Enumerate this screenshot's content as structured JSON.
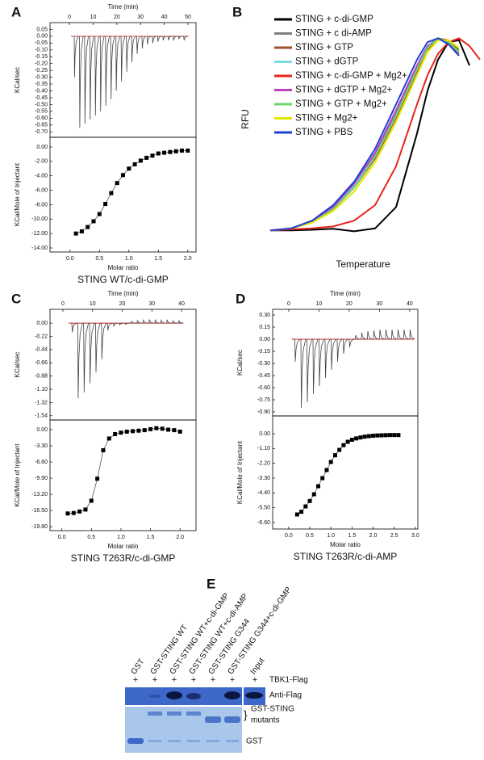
{
  "chart_data": [
    {
      "type": "itc_raw",
      "panel": "A",
      "xlabel": "Time (min)",
      "ylabel": "KCal/sec",
      "color": "#444444",
      "baseline_color": "#d62728",
      "xlim": [
        -8.2,
        53.4
      ],
      "xticks": [
        0,
        10,
        20,
        30,
        40,
        50
      ],
      "ylim": [
        -0.74,
        0.1
      ],
      "yticks": [
        0.05,
        {
          "value": 0,
          "label": "0.00"
        },
        -0.05,
        {
          "value": -0.1,
          "label": "-0.10"
        },
        -0.15,
        {
          "value": -0.2,
          "label": "-0.20"
        },
        -0.25,
        {
          "value": -0.3,
          "label": "-0.30"
        },
        -0.35,
        {
          "value": -0.4,
          "label": "-0.40"
        },
        -0.45,
        {
          "value": -0.5,
          "label": "-0.50"
        },
        -0.55,
        {
          "value": -0.6,
          "label": "-0.60"
        },
        -0.65,
        {
          "value": -0.7,
          "label": "-0.70"
        }
      ],
      "x": [
        2,
        4.2,
        6.4,
        8.6,
        10.8,
        13,
        15.2,
        17.4,
        19.6,
        21.8,
        24,
        26.2,
        28.4,
        30.6,
        32.8,
        35,
        37.2,
        39.4,
        41.6,
        43.8,
        46,
        48.2
      ],
      "values": [
        -0.3,
        -0.67,
        -0.64,
        -0.61,
        -0.58,
        -0.55,
        -0.51,
        -0.46,
        -0.4,
        -0.33,
        -0.26,
        -0.19,
        -0.13,
        -0.09,
        -0.06,
        -0.05,
        -0.04,
        -0.03,
        -0.03,
        -0.03,
        -0.02,
        -0.03
      ]
    },
    {
      "type": "itc_binding",
      "xlabel": "Molar ratio",
      "ylabel": "KCal/Mole of Injectant",
      "caption": "STING WT/c-di-GMP",
      "color": "#000000",
      "xlim": [
        -0.34,
        2.14
      ],
      "xticks": [
        {
          "value": 0,
          "label": "0.0"
        },
        0.5,
        {
          "value": 1,
          "label": "1.0"
        },
        1.5,
        {
          "value": 2,
          "label": "2.0"
        }
      ],
      "ylim": [
        -14.56,
        1.34
      ],
      "yticks": [
        {
          "value": 0,
          "label": "0.00"
        },
        {
          "value": -2,
          "label": "-2.00"
        },
        {
          "value": -4,
          "label": "-4.00"
        },
        {
          "value": -6,
          "label": "-6.00"
        },
        {
          "value": -8,
          "label": "-8.00"
        },
        {
          "value": -10,
          "label": "-10.00"
        },
        {
          "value": -12,
          "label": "-12.00"
        },
        {
          "value": -14,
          "label": "-14.00"
        }
      ],
      "x": [
        0.1,
        0.2,
        0.3,
        0.4,
        0.5,
        0.6,
        0.7,
        0.8,
        0.9,
        1.0,
        1.1,
        1.2,
        1.3,
        1.4,
        1.5,
        1.6,
        1.7,
        1.8,
        1.9,
        2.0
      ],
      "values": [
        -12.0,
        -11.7,
        -11.1,
        -10.3,
        -9.3,
        -7.9,
        -6.4,
        -5.0,
        -3.9,
        -3.0,
        -2.4,
        -1.9,
        -1.5,
        -1.2,
        -0.9,
        -0.8,
        -0.7,
        -0.6,
        -0.5,
        -0.5
      ]
    },
    {
      "type": "line",
      "panel": "B",
      "xlabel": "Temperature",
      "ylabel": "RFU",
      "xlim": [
        0,
        100
      ],
      "ylim": [
        -2,
        100
      ],
      "x": [
        0,
        10,
        20,
        30,
        40,
        50,
        60,
        70,
        75,
        80,
        85,
        90,
        95,
        100
      ],
      "series": [
        {
          "name": "STING + c-di-GMP",
          "color": "#000000",
          "values": [
            0,
            0,
            0.3,
            0.8,
            -0.5,
            1,
            12,
            50,
            72,
            88,
            97,
            98,
            85,
            null
          ]
        },
        {
          "name": "STING + c di-AMP",
          "color": "#808080",
          "values": [
            0,
            1,
            5,
            12,
            23,
            39,
            60,
            84,
            94,
            99,
            97,
            91,
            null,
            null
          ]
        },
        {
          "name": "STING + GTP",
          "color": "#a0522d",
          "values": [
            0,
            1,
            4,
            11,
            22,
            37,
            58,
            82,
            93,
            99,
            98,
            93,
            null,
            null
          ]
        },
        {
          "name": "STING + dGTP",
          "color": "#7fdbe0",
          "values": [
            0,
            1,
            5,
            12,
            23,
            38,
            59,
            83,
            94,
            99,
            97,
            92,
            null,
            null
          ]
        },
        {
          "name": "STING + c-di-GMP + Mg2+",
          "color": "#e8251c",
          "values": [
            0,
            0.5,
            1,
            2,
            5,
            13,
            33,
            65,
            80,
            91,
            97,
            99,
            95,
            88
          ]
        },
        {
          "name": "STING + dGTP + Mg2+",
          "color": "#c040c0",
          "values": [
            0,
            1,
            5,
            12,
            24,
            40,
            62,
            85,
            95,
            99,
            96,
            90,
            null,
            null
          ]
        },
        {
          "name": "STING + GTP + Mg2+",
          "color": "#6cd66c",
          "values": [
            0,
            1,
            4,
            11,
            22,
            38,
            59,
            83,
            94,
            99,
            97,
            92,
            null,
            null
          ]
        },
        {
          "name": "STING + Mg2+",
          "color": "#e6e600",
          "values": [
            0,
            1,
            4,
            10,
            20,
            35,
            56,
            80,
            92,
            98,
            98,
            94,
            null,
            null
          ]
        },
        {
          "name": "STING + PBS",
          "color": "#1f3fd6",
          "values": [
            0,
            1,
            5,
            13,
            25,
            42,
            65,
            88,
            97,
            99,
            96,
            90,
            null,
            null
          ]
        }
      ]
    },
    {
      "type": "itc_raw",
      "panel": "C",
      "xlabel": "Time (min)",
      "ylabel": "KCal/sec",
      "color": "#444444",
      "baseline_color": "#d62728",
      "xlim": [
        -4.35,
        44.9
      ],
      "xticks": [
        0,
        10,
        20,
        30,
        40
      ],
      "ylim": [
        -1.61,
        0.23
      ],
      "yticks": [
        {
          "value": 0,
          "label": "0.00"
        },
        -0.22,
        -0.44,
        -0.66,
        -0.88,
        {
          "value": -1.1,
          "label": "-1.10"
        },
        -1.32,
        -1.54
      ],
      "x": [
        3,
        5,
        7,
        9,
        11,
        13,
        15,
        17,
        19,
        21,
        23,
        25,
        27,
        29,
        31,
        33,
        35,
        37,
        39
      ],
      "values": [
        -0.15,
        -1.25,
        -1.15,
        -1.0,
        -0.82,
        -0.6,
        -0.12,
        -0.05,
        -0.03,
        -0.02,
        0.03,
        0.04,
        0.05,
        0.06,
        0.06,
        0.05,
        0.05,
        0.04,
        0.04
      ]
    },
    {
      "type": "itc_binding",
      "xlabel": "Molar ratio",
      "ylabel": "KCal/Mole of Injectant",
      "caption": "STING T263R/c-di-GMP",
      "color": "#000000",
      "xlim": [
        -0.2,
        2.27
      ],
      "xticks": [
        {
          "value": 0,
          "label": "0.0"
        },
        0.5,
        {
          "value": 1,
          "label": "1.0"
        },
        1.5,
        {
          "value": 2,
          "label": "2.0"
        }
      ],
      "ylim": [
        -20.6,
        1.98
      ],
      "yticks": [
        {
          "value": 0,
          "label": "0.00"
        },
        {
          "value": -3.3,
          "label": "-3.30"
        },
        {
          "value": -6.6,
          "label": "-6.60"
        },
        {
          "value": -9.9,
          "label": "-9.90"
        },
        {
          "value": -13.2,
          "label": "-13.20"
        },
        {
          "value": -16.5,
          "label": "-16.50"
        },
        {
          "value": -19.8,
          "label": "-19.80"
        }
      ],
      "x": [
        0.1,
        0.2,
        0.3,
        0.4,
        0.5,
        0.6,
        0.7,
        0.8,
        0.9,
        1.0,
        1.1,
        1.2,
        1.3,
        1.4,
        1.5,
        1.6,
        1.7,
        1.8,
        1.9,
        2.0
      ],
      "values": [
        -17.1,
        -17.0,
        -16.7,
        -16.3,
        -14.5,
        -10.0,
        -4.2,
        -1.8,
        -0.9,
        -0.6,
        -0.4,
        -0.3,
        -0.2,
        -0.1,
        0.1,
        0.3,
        0.2,
        0.0,
        -0.1,
        -0.4
      ]
    },
    {
      "type": "itc_raw",
      "panel": "D",
      "xlabel": "Time (min)",
      "ylabel": "KCal/sec",
      "color": "#444444",
      "baseline_color": "#d62728",
      "xlim": [
        -5.33,
        42.7
      ],
      "xticks": [
        0,
        10,
        20,
        30,
        40
      ],
      "ylim": [
        -0.95,
        0.37
      ],
      "yticks": [
        {
          "value": 0.3,
          "label": "0.30"
        },
        0.15,
        {
          "value": 0,
          "label": "0.00"
        },
        -0.15,
        {
          "value": -0.3,
          "label": "-0.30"
        },
        -0.45,
        {
          "value": -0.6,
          "label": "-0.60"
        },
        -0.75,
        {
          "value": -0.9,
          "label": "-0.90"
        }
      ],
      "x": [
        2,
        4,
        6,
        8,
        10,
        12,
        14,
        16,
        18,
        20,
        22,
        24,
        26,
        28,
        30,
        32,
        34,
        36,
        38,
        40
      ],
      "values": [
        -0.28,
        -0.85,
        -0.78,
        -0.68,
        -0.58,
        -0.48,
        -0.38,
        -0.28,
        -0.18,
        -0.1,
        0.05,
        0.08,
        0.1,
        0.11,
        0.12,
        0.12,
        0.12,
        0.12,
        0.12,
        0.12
      ]
    },
    {
      "type": "itc_binding",
      "xlabel": "Molar ratio",
      "ylabel": "KCal/Mole of Injectant",
      "caption": "STING T263R/c-di-AMP",
      "color": "#000000",
      "xlim": [
        -0.38,
        3.06
      ],
      "xticks": [
        {
          "value": 0,
          "label": "0.0"
        },
        0.5,
        {
          "value": 1,
          "label": "1.0"
        },
        1.5,
        {
          "value": 2,
          "label": "2.0"
        },
        2.5,
        {
          "value": 3,
          "label": "3.0"
        }
      ],
      "ylim": [
        -7.08,
        1.32
      ],
      "yticks": [
        {
          "value": 0,
          "label": "0.00"
        },
        {
          "value": -1.1,
          "label": "-1.10"
        },
        {
          "value": -2.2,
          "label": "-2.20"
        },
        {
          "value": -3.3,
          "label": "-3.30"
        },
        {
          "value": -4.4,
          "label": "-4.40"
        },
        {
          "value": -5.5,
          "label": "-5.50"
        },
        {
          "value": -6.6,
          "label": "-6.60"
        }
      ],
      "x": [
        0.2,
        0.3,
        0.4,
        0.5,
        0.6,
        0.7,
        0.8,
        0.9,
        1.0,
        1.1,
        1.2,
        1.3,
        1.4,
        1.5,
        1.6,
        1.7,
        1.8,
        1.9,
        2.0,
        2.1,
        2.2,
        2.3,
        2.4,
        2.5,
        2.6
      ],
      "values": [
        -6.0,
        -5.8,
        -5.4,
        -5.0,
        -4.5,
        -3.9,
        -3.3,
        -2.7,
        -2.1,
        -1.6,
        -1.2,
        -0.85,
        -0.6,
        -0.45,
        -0.35,
        -0.28,
        -0.22,
        -0.18,
        -0.15,
        -0.13,
        -0.12,
        -0.11,
        -0.1,
        -0.1,
        -0.1
      ]
    }
  ],
  "gel": {
    "panel": "E",
    "lanes": [
      "GST",
      "GST-STING WT",
      "GST-STING WT+c-di-GMP",
      "GST-STING WT+c-di-AMP",
      "GST-STING G344",
      "GST-STING G344+c-di-GMP",
      "Input"
    ],
    "treatment": [
      "+",
      "+",
      "+",
      "+",
      "+",
      "+",
      "+"
    ],
    "treatment_label": "TBK1-Flag",
    "blot_label": "Anti-Flag",
    "band_labels": [
      "GST-STING",
      "mutants",
      "GST"
    ]
  }
}
